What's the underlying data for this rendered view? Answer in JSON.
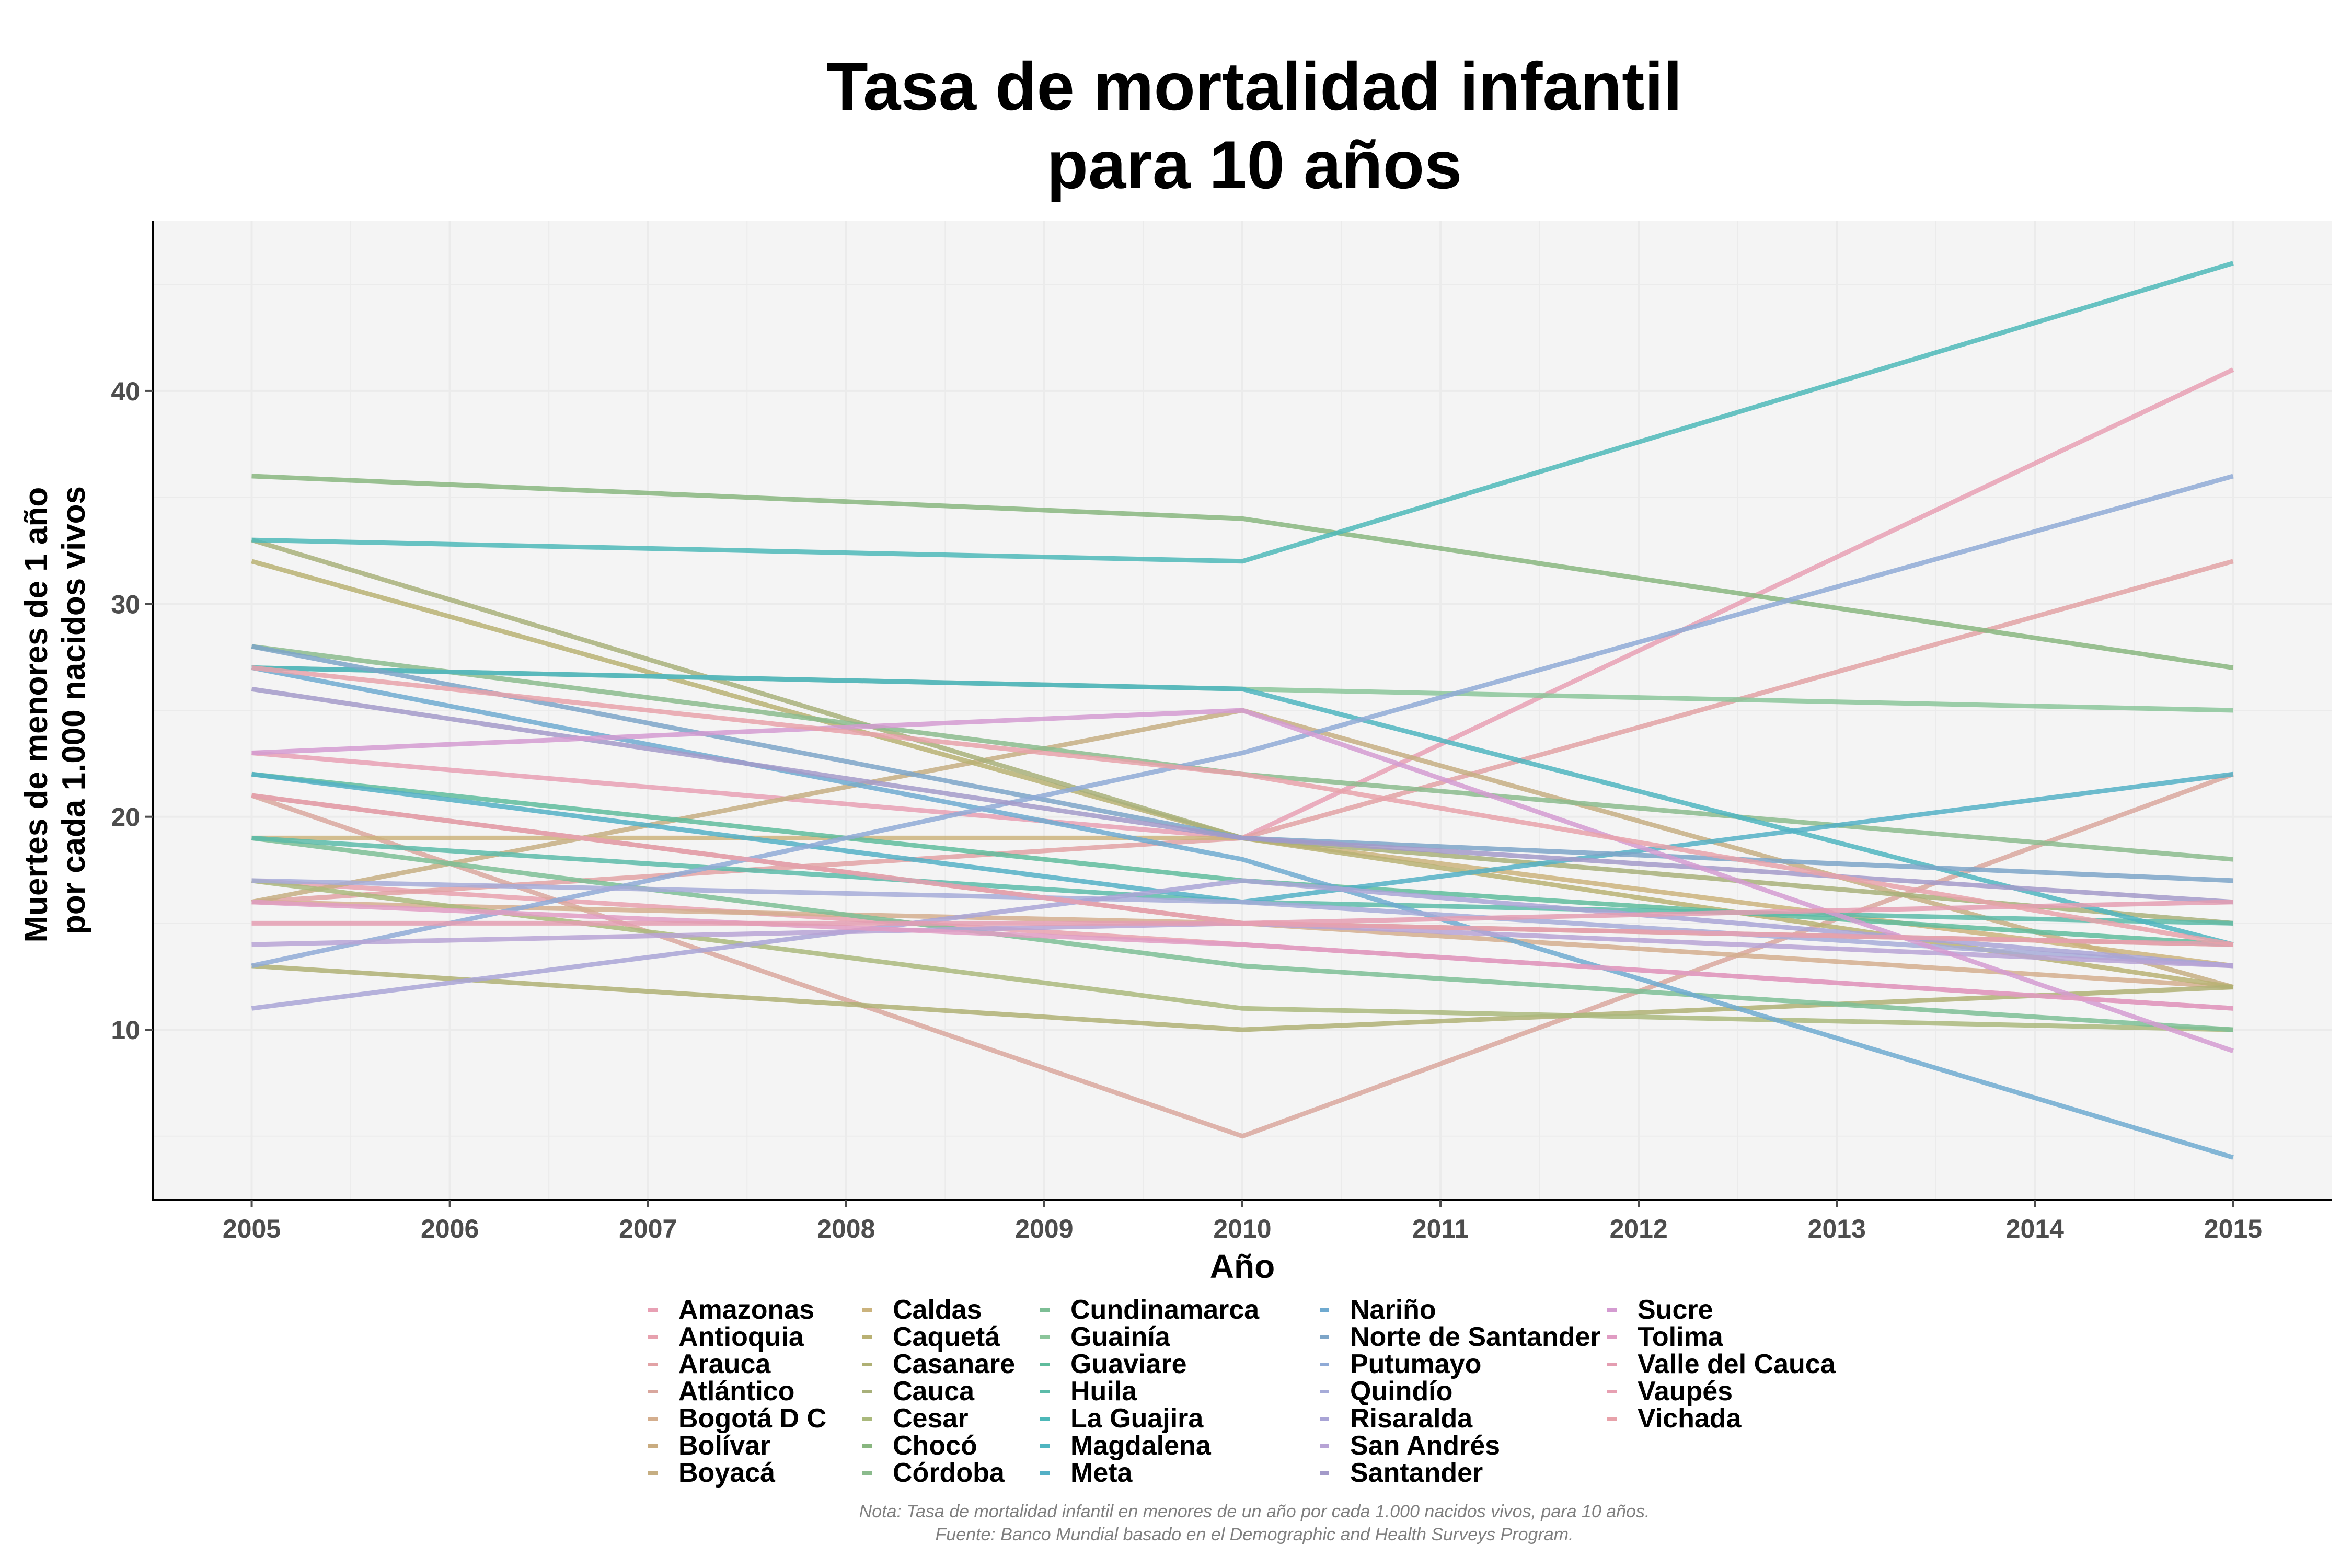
{
  "title": [
    "Tasa de mortalidad infantil",
    "para 10 años"
  ],
  "caption": [
    "Nota: Tasa de mortalidad infantil en menores de un año por cada 1.000 nacidos vivos, para 10 años.",
    "Fuente: Banco Mundial basado en el Demographic and Health Surveys Program."
  ],
  "colors": {
    "panel": "#f4f4f4",
    "grid": "#ebebeb",
    "axis": "#000000",
    "tick_text": "#4d4d4d"
  },
  "chart_data": {
    "type": "line",
    "title": "Tasa de mortalidad infantil para 10 años",
    "xlabel": "Año",
    "ylabel": [
      "Muertes de menores de 1 año",
      "por cada 1.000 nacidos vivos"
    ],
    "x": [
      2005,
      2010,
      2015
    ],
    "x_ticks": [
      2005,
      2006,
      2007,
      2008,
      2009,
      2010,
      2011,
      2012,
      2013,
      2014,
      2015
    ],
    "y_ticks": [
      10,
      20,
      30,
      40
    ],
    "xlim": [
      2004.5,
      2015.5
    ],
    "ylim": [
      2,
      48
    ],
    "grid": true,
    "legend_position": "bottom",
    "series": [
      {
        "name": "Amazonas",
        "color": "#E8A0B4",
        "values": [
          23,
          19,
          41
        ]
      },
      {
        "name": "Antioquia",
        "color": "#E7A1AE",
        "values": [
          17,
          14,
          11
        ]
      },
      {
        "name": "Arauca",
        "color": "#E2A2A5",
        "values": [
          16,
          19,
          32
        ]
      },
      {
        "name": "Atlántico",
        "color": "#D9A79E",
        "values": [
          21,
          5,
          22
        ]
      },
      {
        "name": "Bogotá D C",
        "color": "#D4AE8E",
        "values": [
          16,
          15,
          12
        ]
      },
      {
        "name": "Bolívar",
        "color": "#C9AC80",
        "values": [
          21,
          15,
          14
        ]
      },
      {
        "name": "Boyacá",
        "color": "#C6AE82",
        "values": [
          16,
          25,
          12
        ]
      },
      {
        "name": "Caldas",
        "color": "#CBB37D",
        "values": [
          19,
          19,
          13
        ]
      },
      {
        "name": "Caquetá",
        "color": "#B9B173",
        "values": [
          32,
          19,
          12
        ]
      },
      {
        "name": "Casanare",
        "color": "#AFB074",
        "values": [
          13,
          10,
          12
        ]
      },
      {
        "name": "Cauca",
        "color": "#A8B07A",
        "values": [
          33,
          19,
          15
        ]
      },
      {
        "name": "Cesar",
        "color": "#AAB97C",
        "values": [
          17,
          11,
          10
        ]
      },
      {
        "name": "Chocó",
        "color": "#88B67F",
        "values": [
          36,
          34,
          27
        ]
      },
      {
        "name": "Córdoba",
        "color": "#8BBB8D",
        "values": [
          28,
          22,
          18
        ]
      },
      {
        "name": "Cundinamarca",
        "color": "#7DBE95",
        "values": [
          19,
          13,
          10
        ]
      },
      {
        "name": "Guainía",
        "color": "#8BC59A",
        "values": [
          27,
          26,
          25
        ]
      },
      {
        "name": "Guaviare",
        "color": "#5FBC9C",
        "values": [
          22,
          17,
          14
        ]
      },
      {
        "name": "Huila",
        "color": "#5CBBA9",
        "values": [
          19,
          16,
          15
        ]
      },
      {
        "name": "La Guajira",
        "color": "#4DB8B8",
        "values": [
          33,
          32,
          46
        ]
      },
      {
        "name": "Magdalena",
        "color": "#4FB5C0",
        "values": [
          27,
          26,
          14
        ]
      },
      {
        "name": "Meta",
        "color": "#54B0C6",
        "values": [
          22,
          16,
          22
        ]
      },
      {
        "name": "Nariño",
        "color": "#6FAAD0",
        "values": [
          27,
          18,
          4
        ]
      },
      {
        "name": "Norte de Santander",
        "color": "#7DA5C8",
        "values": [
          28,
          19,
          17
        ]
      },
      {
        "name": "Putumayo",
        "color": "#8FAAD6",
        "values": [
          13,
          23,
          36
        ]
      },
      {
        "name": "Quindío",
        "color": "#A6ABD8",
        "values": [
          17,
          16,
          13
        ]
      },
      {
        "name": "Risaralda",
        "color": "#A9A4D6",
        "values": [
          11,
          17,
          13
        ]
      },
      {
        "name": "San Andrés",
        "color": "#B7A3D5",
        "values": [
          14,
          15,
          13
        ]
      },
      {
        "name": "Santander",
        "color": "#A39AC9",
        "values": [
          26,
          19,
          16
        ]
      },
      {
        "name": "Sucre",
        "color": "#D49BD1",
        "values": [
          23,
          25,
          9
        ]
      },
      {
        "name": "Tolima",
        "color": "#E09CC3",
        "values": [
          16,
          14,
          11
        ]
      },
      {
        "name": "Valle del Cauca",
        "color": "#E49DB1",
        "values": [
          15,
          15,
          16
        ]
      },
      {
        "name": "Vaupés",
        "color": "#E7A0B2",
        "values": [
          21,
          15,
          14
        ]
      },
      {
        "name": "Vichada",
        "color": "#E8A2AA",
        "values": [
          27,
          22,
          14
        ]
      }
    ]
  }
}
